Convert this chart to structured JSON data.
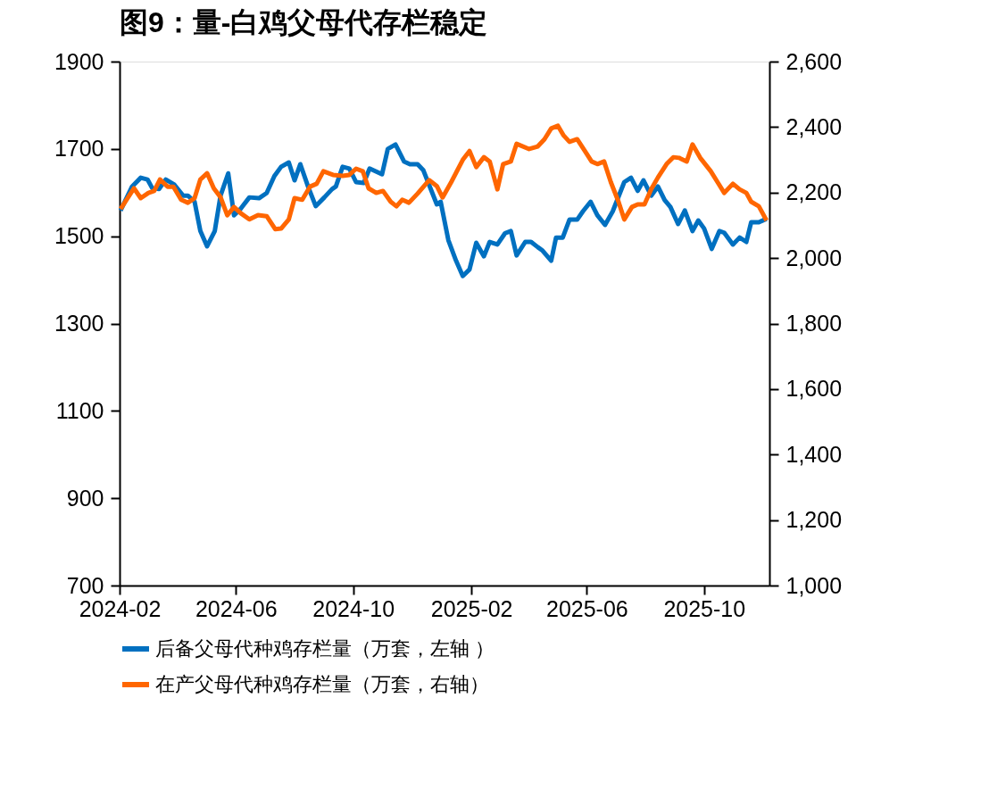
{
  "chart_data": {
    "type": "line",
    "title": "图9：量-白鸡父母代存栏稳定",
    "xlim": [
      "2024-02-01",
      "2025-12-08"
    ],
    "xticks": [
      {
        "value": "2024-02-01",
        "label": "2024-02"
      },
      {
        "value": "2024-06-01",
        "label": "2024-06"
      },
      {
        "value": "2024-10-01",
        "label": "2024-10"
      },
      {
        "value": "2025-02-01",
        "label": "2025-02"
      },
      {
        "value": "2025-06-01",
        "label": "2025-06"
      },
      {
        "value": "2025-10-01",
        "label": "2025-10"
      }
    ],
    "ylim": [
      700,
      1900
    ],
    "yticks": [
      700,
      900,
      1100,
      1300,
      1500,
      1700,
      1900
    ],
    "y2lim": [
      1000,
      2600
    ],
    "y2ticks": [
      {
        "value": 1000,
        "label": "1,000"
      },
      {
        "value": 1200,
        "label": "1,200"
      },
      {
        "value": 1400,
        "label": "1,400"
      },
      {
        "value": 1600,
        "label": "1,600"
      },
      {
        "value": 1800,
        "label": "1,800"
      },
      {
        "value": 2000,
        "label": "2,000"
      },
      {
        "value": 2200,
        "label": "2,200"
      },
      {
        "value": 2400,
        "label": "2,400"
      },
      {
        "value": 2600,
        "label": "2,600"
      }
    ],
    "grid": false,
    "legend": "bottom",
    "marker": "none",
    "line_style": "solid",
    "series": [
      {
        "name": "后备父母代种鸡存栏量（万套，左轴 ）",
        "color": "#0070c0",
        "axis": "y",
        "x": [
          "2024-02-02",
          "2024-02-14",
          "2024-02-23",
          "2024-03-01",
          "2024-03-06",
          "2024-03-13",
          "2024-03-20",
          "2024-03-29",
          "2024-04-07",
          "2024-04-12",
          "2024-04-19",
          "2024-04-25",
          "2024-05-02",
          "2024-05-10",
          "2024-05-16",
          "2024-05-24",
          "2024-05-30",
          "2024-06-06",
          "2024-06-15",
          "2024-06-25",
          "2024-07-03",
          "2024-07-11",
          "2024-07-18",
          "2024-07-26",
          "2024-08-01",
          "2024-08-07",
          "2024-08-15",
          "2024-08-23",
          "2024-09-01",
          "2024-09-09",
          "2024-09-13",
          "2024-09-20",
          "2024-09-27",
          "2024-10-04",
          "2024-10-12",
          "2024-10-18",
          "2024-10-31",
          "2024-11-06",
          "2024-11-14",
          "2024-11-23",
          "2024-11-29",
          "2024-12-07",
          "2024-12-13",
          "2024-12-27",
          "2024-12-31",
          "2025-01-08",
          "2025-01-16",
          "2025-01-23",
          "2025-01-30",
          "2025-02-06",
          "2025-02-14",
          "2025-02-20",
          "2025-02-28",
          "2025-03-08",
          "2025-03-14",
          "2025-03-20",
          "2025-03-29",
          "2025-04-04",
          "2025-04-11",
          "2025-04-16",
          "2025-04-25",
          "2025-04-30",
          "2025-05-07",
          "2025-05-14",
          "2025-05-22",
          "2025-05-28",
          "2025-06-05",
          "2025-06-12",
          "2025-06-20",
          "2025-06-28",
          "2025-07-10",
          "2025-07-17",
          "2025-07-24",
          "2025-07-30",
          "2025-08-07",
          "2025-08-14",
          "2025-08-21",
          "2025-08-27",
          "2025-09-04",
          "2025-09-11",
          "2025-09-19",
          "2025-09-25",
          "2025-10-01",
          "2025-10-09",
          "2025-10-17",
          "2025-10-22",
          "2025-10-31",
          "2025-11-07",
          "2025-11-14",
          "2025-11-19",
          "2025-11-27",
          "2025-12-05"
        ],
        "values": [
          1559,
          1614,
          1634,
          1630,
          1610,
          1608,
          1630,
          1618,
          1593,
          1593,
          1579,
          1512,
          1477,
          1512,
          1593,
          1644,
          1548,
          1563,
          1589,
          1587,
          1599,
          1638,
          1659,
          1669,
          1628,
          1665,
          1614,
          1569,
          1589,
          1608,
          1614,
          1659,
          1655,
          1624,
          1622,
          1655,
          1642,
          1700,
          1710,
          1671,
          1665,
          1665,
          1651,
          1573,
          1579,
          1491,
          1444,
          1409,
          1424,
          1485,
          1454,
          1487,
          1481,
          1507,
          1512,
          1456,
          1487,
          1487,
          1475,
          1467,
          1444,
          1497,
          1497,
          1538,
          1538,
          1557,
          1579,
          1548,
          1526,
          1557,
          1624,
          1634,
          1604,
          1628,
          1593,
          1614,
          1583,
          1567,
          1528,
          1559,
          1512,
          1536,
          1518,
          1471,
          1512,
          1508,
          1481,
          1497,
          1487,
          1532,
          1532,
          1540
        ]
      },
      {
        "name": "在产父母代种鸡存栏量（万套，右轴）",
        "color": "#ff6600",
        "axis": "y2",
        "x": [
          "2024-02-02",
          "2024-02-16",
          "2024-02-23",
          "2024-03-02",
          "2024-03-08",
          "2024-03-14",
          "2024-03-22",
          "2024-03-28",
          "2024-04-05",
          "2024-04-12",
          "2024-04-19",
          "2024-04-25",
          "2024-05-02",
          "2024-05-09",
          "2024-05-16",
          "2024-05-23",
          "2024-05-30",
          "2024-06-06",
          "2024-06-15",
          "2024-06-24",
          "2024-07-03",
          "2024-07-12",
          "2024-07-18",
          "2024-07-26",
          "2024-08-01",
          "2024-08-09",
          "2024-08-17",
          "2024-08-24",
          "2024-08-31",
          "2024-09-10",
          "2024-09-20",
          "2024-09-27",
          "2024-10-04",
          "2024-10-11",
          "2024-10-17",
          "2024-10-25",
          "2024-11-01",
          "2024-11-09",
          "2024-11-15",
          "2024-11-21",
          "2024-11-28",
          "2024-12-07",
          "2024-12-19",
          "2024-12-27",
          "2025-01-02",
          "2025-01-11",
          "2025-01-23",
          "2025-01-30",
          "2025-02-06",
          "2025-02-14",
          "2025-02-20",
          "2025-02-28",
          "2025-03-06",
          "2025-03-14",
          "2025-03-20",
          "2025-04-02",
          "2025-04-11",
          "2025-04-18",
          "2025-04-25",
          "2025-05-02",
          "2025-05-08",
          "2025-05-14",
          "2025-05-22",
          "2025-05-30",
          "2025-06-06",
          "2025-06-12",
          "2025-06-19",
          "2025-06-26",
          "2025-07-04",
          "2025-07-10",
          "2025-07-18",
          "2025-07-24",
          "2025-07-31",
          "2025-08-07",
          "2025-08-14",
          "2025-08-23",
          "2025-08-30",
          "2025-09-05",
          "2025-09-13",
          "2025-09-19",
          "2025-09-27",
          "2025-10-08",
          "2025-10-15",
          "2025-10-22",
          "2025-10-31",
          "2025-11-07",
          "2025-11-14",
          "2025-11-19",
          "2025-11-27",
          "2025-12-05"
        ],
        "values": [
          2150,
          2213,
          2183,
          2199,
          2205,
          2240,
          2218,
          2218,
          2178,
          2169,
          2183,
          2240,
          2259,
          2213,
          2186,
          2131,
          2156,
          2137,
          2118,
          2131,
          2128,
          2088,
          2090,
          2118,
          2183,
          2178,
          2218,
          2227,
          2265,
          2254,
          2251,
          2254,
          2273,
          2265,
          2213,
          2199,
          2205,
          2172,
          2158,
          2178,
          2169,
          2197,
          2238,
          2220,
          2185,
          2232,
          2300,
          2327,
          2278,
          2308,
          2295,
          2210,
          2287,
          2295,
          2349,
          2333,
          2341,
          2363,
          2396,
          2404,
          2374,
          2355,
          2363,
          2327,
          2295,
          2287,
          2295,
          2232,
          2172,
          2118,
          2156,
          2164,
          2164,
          2210,
          2246,
          2287,
          2308,
          2306,
          2295,
          2347,
          2306,
          2265,
          2232,
          2199,
          2227,
          2210,
          2199,
          2172,
          2158,
          2115
        ]
      }
    ]
  }
}
